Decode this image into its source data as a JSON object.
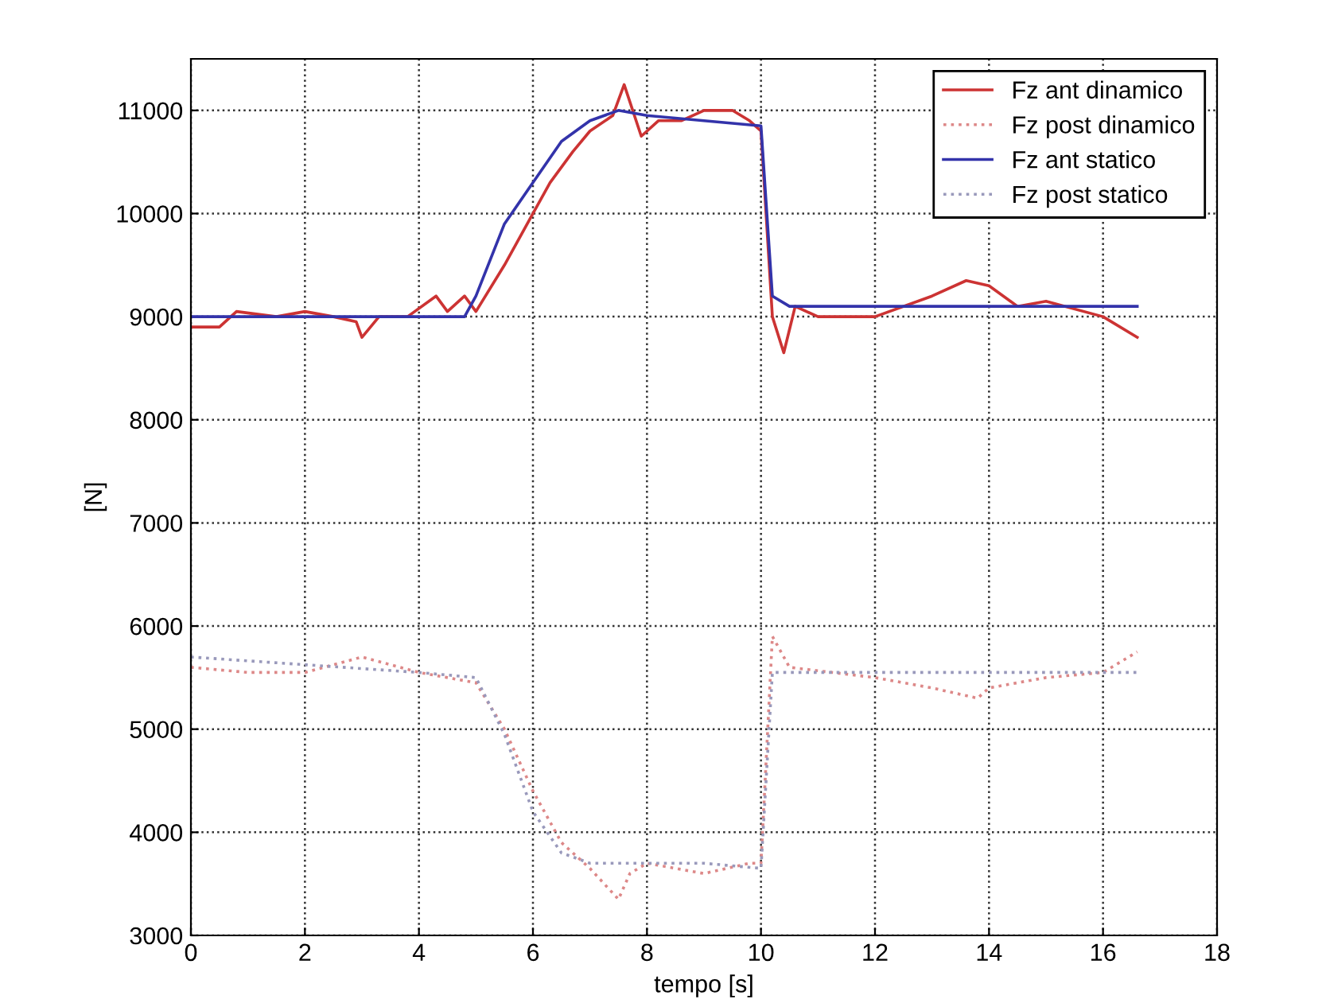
{
  "chart_data": {
    "type": "line",
    "xlabel": "tempo [s]",
    "ylabel": "[N]",
    "xlim": [
      0,
      18
    ],
    "xticks": [
      0,
      2,
      4,
      6,
      8,
      10,
      12,
      14,
      16,
      18
    ],
    "ylim": [
      3000,
      11500
    ],
    "yticks": [
      3000,
      4000,
      5000,
      6000,
      7000,
      8000,
      9000,
      10000,
      11000
    ],
    "grid": true,
    "legend": "top right",
    "series": [
      {
        "name": "Fz ant dinamico",
        "color": "#cc3333",
        "line_style": "solid",
        "x": [
          0,
          0.5,
          0.8,
          1.5,
          2,
          2.5,
          2.9,
          3,
          3.3,
          3.8,
          4.3,
          4.5,
          4.8,
          5,
          5.5,
          6,
          6.3,
          6.7,
          7,
          7.4,
          7.6,
          7.9,
          8.2,
          8.6,
          9,
          9.5,
          9.8,
          10,
          10.2,
          10.4,
          10.6,
          11,
          12,
          13,
          13.6,
          14,
          14.5,
          15,
          16,
          16.6
        ],
        "values": [
          8900,
          8900,
          9050,
          9000,
          9050,
          9000,
          8950,
          8800,
          9000,
          9000,
          9200,
          9050,
          9200,
          9050,
          9500,
          10000,
          10300,
          10600,
          10800,
          10950,
          11250,
          10750,
          10900,
          10900,
          11000,
          11000,
          10900,
          10800,
          9000,
          8650,
          9100,
          9000,
          9000,
          9200,
          9350,
          9300,
          9100,
          9150,
          9000,
          8800
        ]
      },
      {
        "name": "Fz post dinamico",
        "color": "#dd8888",
        "line_style": "dotted",
        "x": [
          0,
          1,
          2,
          3,
          4,
          4.5,
          5,
          5.5,
          6,
          6.5,
          7,
          7.5,
          7.7,
          8,
          9,
          9.8,
          10,
          10.2,
          10.5,
          12,
          13,
          13.8,
          14,
          15,
          16,
          16.6
        ],
        "values": [
          5600,
          5550,
          5550,
          5700,
          5550,
          5500,
          5450,
          5000,
          4400,
          3900,
          3650,
          3350,
          3600,
          3700,
          3600,
          3700,
          3700,
          5900,
          5600,
          5500,
          5400,
          5300,
          5400,
          5500,
          5550,
          5750
        ]
      },
      {
        "name": "Fz ant statico",
        "color": "#3333aa",
        "line_style": "solid",
        "x": [
          0,
          4.8,
          5,
          5.5,
          6,
          6.5,
          7,
          7.5,
          8,
          9,
          10,
          10.2,
          10.5,
          16.6
        ],
        "values": [
          9000,
          9000,
          9200,
          9900,
          10300,
          10700,
          10900,
          11000,
          10950,
          10900,
          10850,
          9200,
          9100,
          9100
        ]
      },
      {
        "name": "Fz post statico",
        "color": "#9999bb",
        "line_style": "dotted",
        "x": [
          0,
          4,
          5,
          5.5,
          6,
          6.5,
          7,
          8,
          9,
          10,
          10.2,
          16.6
        ],
        "values": [
          5700,
          5550,
          5500,
          4950,
          4200,
          3800,
          3700,
          3700,
          3700,
          3650,
          5550,
          5550
        ]
      }
    ]
  }
}
